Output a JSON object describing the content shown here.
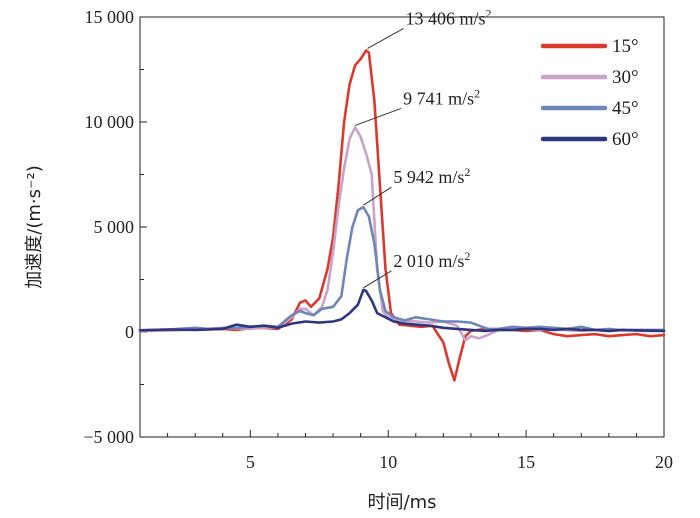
{
  "chart_data": {
    "type": "line",
    "title": "",
    "xlabel": "时间/ms",
    "ylabel": "加速度/(m·s⁻²)",
    "xlim": [
      1,
      20
    ],
    "ylim": [
      -5000,
      15000
    ],
    "x_ticks": [
      5,
      10,
      15,
      20
    ],
    "y_ticks": [
      -5000,
      0,
      5000,
      10000,
      15000
    ],
    "x_tick_labels": [
      "5",
      "10",
      "15",
      "20"
    ],
    "y_tick_labels": [
      "−5 000",
      "0",
      "5 000",
      "10 000",
      "15 000"
    ],
    "grid": false,
    "legend_position": "top-right",
    "series": [
      {
        "name": "15°",
        "color": "#d93a2e",
        "points": [
          [
            1,
            50
          ],
          [
            2,
            80
          ],
          [
            3,
            120
          ],
          [
            4,
            150
          ],
          [
            4.5,
            100
          ],
          [
            5,
            180
          ],
          [
            5.5,
            200
          ],
          [
            6,
            150
          ],
          [
            6.5,
            600
          ],
          [
            6.8,
            1400
          ],
          [
            7,
            1500
          ],
          [
            7.2,
            1200
          ],
          [
            7.5,
            1600
          ],
          [
            7.8,
            3000
          ],
          [
            8,
            4500
          ],
          [
            8.2,
            7000
          ],
          [
            8.4,
            10000
          ],
          [
            8.6,
            11800
          ],
          [
            8.8,
            12700
          ],
          [
            9,
            13000
          ],
          [
            9.2,
            13406
          ],
          [
            9.3,
            13300
          ],
          [
            9.5,
            11000
          ],
          [
            9.7,
            7000
          ],
          [
            9.9,
            3000
          ],
          [
            10.1,
            900
          ],
          [
            10.4,
            350
          ],
          [
            10.8,
            300
          ],
          [
            11.2,
            250
          ],
          [
            11.6,
            300
          ],
          [
            12,
            -500
          ],
          [
            12.2,
            -1500
          ],
          [
            12.4,
            -2300
          ],
          [
            12.6,
            -1200
          ],
          [
            12.8,
            -200
          ],
          [
            13,
            50
          ],
          [
            13.5,
            150
          ],
          [
            14,
            100
          ],
          [
            14.5,
            100
          ],
          [
            15,
            50
          ],
          [
            15.5,
            100
          ],
          [
            16,
            -100
          ],
          [
            16.5,
            -200
          ],
          [
            17,
            -150
          ],
          [
            17.5,
            -100
          ],
          [
            18,
            -200
          ],
          [
            18.5,
            -150
          ],
          [
            19,
            -100
          ],
          [
            19.5,
            -200
          ],
          [
            20,
            -150
          ]
        ]
      },
      {
        "name": "30°",
        "color": "#c9a3c9",
        "points": [
          [
            1,
            50
          ],
          [
            2,
            100
          ],
          [
            3,
            120
          ],
          [
            4,
            200
          ],
          [
            5,
            150
          ],
          [
            5.5,
            220
          ],
          [
            6,
            200
          ],
          [
            6.5,
            700
          ],
          [
            6.8,
            1100
          ],
          [
            7,
            1100
          ],
          [
            7.3,
            800
          ],
          [
            7.6,
            1200
          ],
          [
            7.8,
            2000
          ],
          [
            8,
            3800
          ],
          [
            8.2,
            6000
          ],
          [
            8.4,
            7800
          ],
          [
            8.6,
            9200
          ],
          [
            8.8,
            9741
          ],
          [
            9,
            9300
          ],
          [
            9.2,
            8500
          ],
          [
            9.4,
            7500
          ],
          [
            9.6,
            3000
          ],
          [
            9.8,
            1000
          ],
          [
            10,
            700
          ],
          [
            10.5,
            550
          ],
          [
            11,
            500
          ],
          [
            11.5,
            450
          ],
          [
            12,
            500
          ],
          [
            12.5,
            300
          ],
          [
            12.8,
            -400
          ],
          [
            13,
            -200
          ],
          [
            13.3,
            -300
          ],
          [
            13.6,
            -150
          ],
          [
            14,
            100
          ],
          [
            14.5,
            150
          ],
          [
            15,
            150
          ],
          [
            15.5,
            100
          ],
          [
            16,
            150
          ],
          [
            16.5,
            80
          ],
          [
            17,
            50
          ],
          [
            17.5,
            100
          ],
          [
            18,
            50
          ],
          [
            18.5,
            100
          ],
          [
            19,
            50
          ],
          [
            20,
            50
          ]
        ]
      },
      {
        "name": "45°",
        "color": "#6e86b8",
        "points": [
          [
            1,
            80
          ],
          [
            2,
            120
          ],
          [
            3,
            200
          ],
          [
            3.5,
            150
          ],
          [
            4,
            180
          ],
          [
            4.5,
            200
          ],
          [
            5,
            250
          ],
          [
            5.5,
            300
          ],
          [
            6,
            250
          ],
          [
            6.5,
            800
          ],
          [
            6.8,
            1000
          ],
          [
            7,
            900
          ],
          [
            7.3,
            800
          ],
          [
            7.6,
            1100
          ],
          [
            8,
            1200
          ],
          [
            8.3,
            1700
          ],
          [
            8.5,
            3500
          ],
          [
            8.7,
            5000
          ],
          [
            8.9,
            5800
          ],
          [
            9.1,
            5942
          ],
          [
            9.3,
            5500
          ],
          [
            9.5,
            4200
          ],
          [
            9.7,
            2000
          ],
          [
            9.9,
            1000
          ],
          [
            10.2,
            700
          ],
          [
            10.6,
            550
          ],
          [
            11,
            700
          ],
          [
            11.5,
            600
          ],
          [
            12,
            500
          ],
          [
            12.5,
            500
          ],
          [
            13,
            450
          ],
          [
            13.3,
            300
          ],
          [
            13.6,
            150
          ],
          [
            14,
            150
          ],
          [
            14.5,
            250
          ],
          [
            15,
            200
          ],
          [
            15.5,
            250
          ],
          [
            16,
            200
          ],
          [
            16.5,
            150
          ],
          [
            17,
            250
          ],
          [
            17.5,
            100
          ],
          [
            18,
            150
          ],
          [
            18.5,
            80
          ],
          [
            19,
            100
          ],
          [
            20,
            100
          ]
        ]
      },
      {
        "name": "60°",
        "color": "#2f3680",
        "points": [
          [
            1,
            80
          ],
          [
            2,
            120
          ],
          [
            3,
            100
          ],
          [
            4,
            150
          ],
          [
            4.5,
            350
          ],
          [
            5,
            250
          ],
          [
            5.5,
            300
          ],
          [
            6,
            200
          ],
          [
            6.5,
            400
          ],
          [
            7,
            500
          ],
          [
            7.5,
            450
          ],
          [
            8,
            500
          ],
          [
            8.3,
            600
          ],
          [
            8.6,
            900
          ],
          [
            8.9,
            1300
          ],
          [
            9.1,
            2010
          ],
          [
            9.2,
            1950
          ],
          [
            9.4,
            1500
          ],
          [
            9.6,
            900
          ],
          [
            9.9,
            700
          ],
          [
            10.2,
            500
          ],
          [
            10.6,
            400
          ],
          [
            11,
            350
          ],
          [
            11.5,
            300
          ],
          [
            12,
            200
          ],
          [
            12.5,
            150
          ],
          [
            13,
            100
          ],
          [
            13.5,
            50
          ],
          [
            14,
            100
          ],
          [
            14.5,
            100
          ],
          [
            15,
            150
          ],
          [
            15.5,
            150
          ],
          [
            16,
            100
          ],
          [
            16.5,
            150
          ],
          [
            17,
            100
          ],
          [
            17.5,
            100
          ],
          [
            18,
            50
          ],
          [
            18.5,
            100
          ],
          [
            19,
            80
          ],
          [
            20,
            50
          ]
        ]
      }
    ],
    "annotations": [
      {
        "text_main": "13 406 m/s",
        "text_sup": "2",
        "x": 9.25,
        "y": 13406,
        "series": "15°"
      },
      {
        "text_main": "9 741 m/s",
        "text_sup": "2",
        "x": 8.8,
        "y": 9741,
        "series": "30°"
      },
      {
        "text_main": "5 942 m/s",
        "text_sup": "2",
        "x": 9.1,
        "y": 5942,
        "series": "45°"
      },
      {
        "text_main": "2 010 m/s",
        "text_sup": "2",
        "x": 9.1,
        "y": 2010,
        "series": "60°"
      }
    ]
  }
}
